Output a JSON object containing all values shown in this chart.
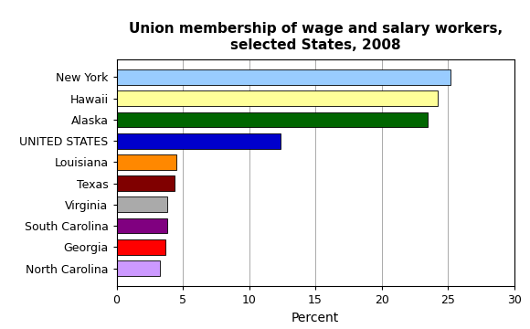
{
  "title": "Union membership of wage and salary workers,\nselected States, 2008",
  "categories": [
    "North Carolina",
    "Georgia",
    "South Carolina",
    "Virginia",
    "Texas",
    "Louisiana",
    "UNITED STATES",
    "Alaska",
    "Hawaii",
    "New York"
  ],
  "values": [
    3.3,
    3.7,
    3.8,
    3.8,
    4.4,
    4.5,
    12.4,
    23.5,
    24.2,
    25.2
  ],
  "bar_colors": [
    "#cc99ff",
    "#ff0000",
    "#800080",
    "#aaaaaa",
    "#800000",
    "#ff8800",
    "#0000cc",
    "#006600",
    "#ffff99",
    "#99ccff"
  ],
  "xlabel": "Percent",
  "xlim": [
    0,
    30
  ],
  "xticks": [
    0,
    5,
    10,
    15,
    20,
    25,
    30
  ],
  "background_color": "#ffffff",
  "title_fontsize": 11,
  "label_fontsize": 9,
  "xlabel_fontsize": 10
}
